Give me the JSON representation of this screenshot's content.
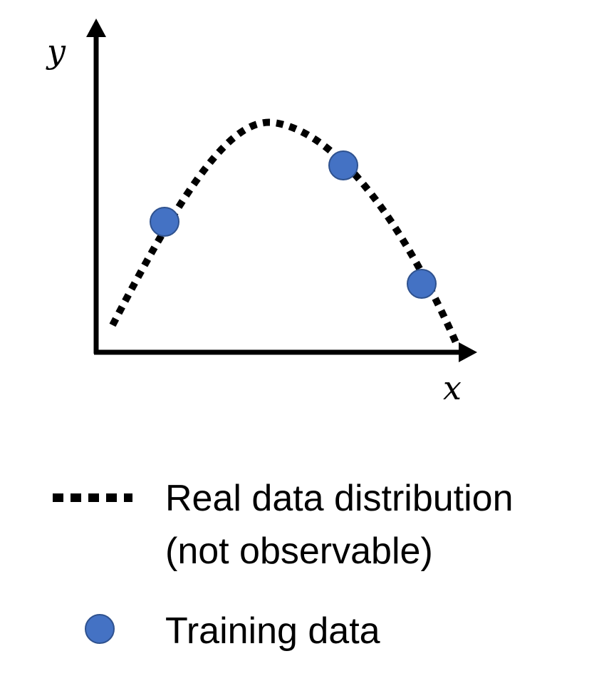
{
  "axes": {
    "y_label": "y",
    "x_label": "x"
  },
  "legend": {
    "distribution_label": "Real data distribution",
    "distribution_sublabel": "(not observable)",
    "training_label": "Training data"
  },
  "colors": {
    "axis": "#000000",
    "curve": "#000000",
    "point_fill": "#4472c4",
    "point_stroke": "#2f528f"
  },
  "diagram_data": {
    "curve_style": "dotted",
    "curve_shape": "asymmetric-hump",
    "training_point_count": 3
  }
}
